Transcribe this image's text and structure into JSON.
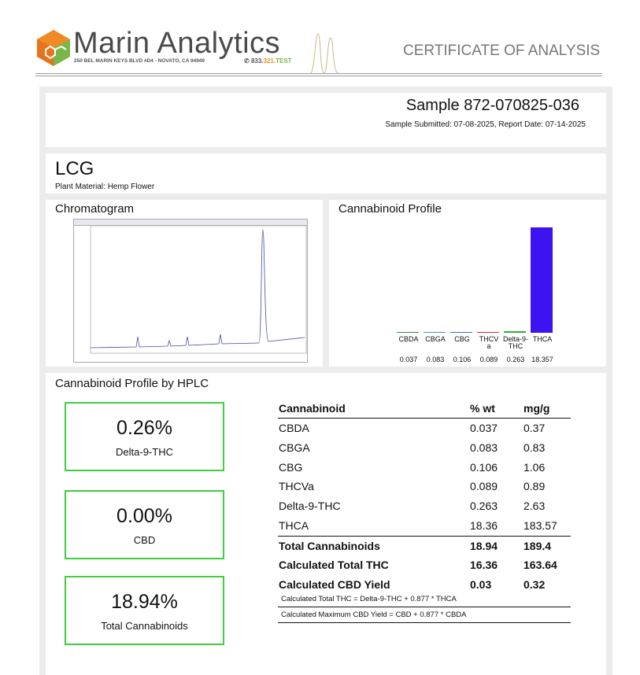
{
  "header": {
    "company": "Marin Analytics",
    "address": "250 BEL MARIN KEYS BLVD #D4 - NOVATO, CA 94949",
    "phone": [
      "833.",
      "321",
      ".TEST"
    ],
    "document_title": "CERTIFICATE OF ANALYSIS"
  },
  "sample": {
    "id": "Sample 872-070825-036",
    "dates": "Sample Submitted: 07-08-2025, Report Date: 07-14-2025"
  },
  "product": {
    "name": "LCG",
    "material": "Plant Material: Hemp Flower"
  },
  "chromatogram": {
    "title": "Chromatogram"
  },
  "cannabinoid_profile": {
    "type": "bar",
    "title": "Cannabinoid Profile",
    "categories": [
      "CBDA",
      "CBGA",
      "CBG",
      "THCVa",
      "Delta-9-THC",
      "THCA"
    ],
    "values": [
      0.037,
      0.083,
      0.106,
      0.089,
      0.263,
      18.357
    ],
    "colors": [
      "#2e8b57",
      "#3aa0a0",
      "#2f6fd0",
      "#d03030",
      "#30b030",
      "#3c14f2"
    ]
  },
  "hplc": {
    "title": "Cannabinoid Profile by HPLC",
    "summary": [
      {
        "value": "0.26%",
        "label": "Delta-9-THC"
      },
      {
        "value": "0.00%",
        "label": "CBD"
      },
      {
        "value": "18.94%",
        "label": "Total Cannabinoids"
      }
    ],
    "columns": [
      "Cannabinoid",
      "% wt",
      "mg/g"
    ],
    "rows": [
      [
        "CBDA",
        "0.037",
        "0.37"
      ],
      [
        "CBGA",
        "0.083",
        "0.83"
      ],
      [
        "CBG",
        "0.106",
        "1.06"
      ],
      [
        "THCVa",
        "0.089",
        "0.89"
      ],
      [
        "Delta-9-THC",
        "0.263",
        "2.63"
      ],
      [
        "THCA",
        "18.36",
        "183.57"
      ]
    ],
    "totals": [
      [
        "Total Cannabinoids",
        "18.94",
        "189.4"
      ],
      [
        "Calculated Total THC",
        "16.36",
        "163.64"
      ],
      [
        "Calculated CBD Yield",
        "0.03",
        "0.32"
      ]
    ],
    "notes": [
      "Calculated Total THC = Delta-9-THC + 0.877 * THCA",
      "Calculated Maximum CBD Yield = CBD + 0.877 * CBDA"
    ]
  }
}
